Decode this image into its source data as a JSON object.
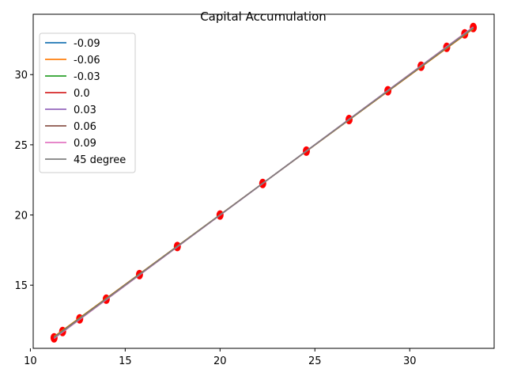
{
  "chart_data": {
    "type": "line",
    "title": "Capital Accumulation",
    "xlabel": "",
    "ylabel": "",
    "xlim": [
      10.15,
      34.45
    ],
    "ylim": [
      10.5,
      34.3
    ],
    "xticks": [
      10,
      15,
      20,
      25,
      30
    ],
    "yticks": [
      15,
      20,
      25,
      30
    ],
    "grid": false,
    "legend_position": "top-left",
    "x": [
      11.25,
      11.7,
      12.6,
      14.0,
      15.75,
      17.75,
      20.0,
      22.25,
      24.55,
      26.8,
      28.85,
      30.6,
      31.95,
      32.9,
      33.35
    ],
    "series": [
      {
        "name": "-0.09",
        "color": "#1f77b4",
        "slope": 1.0
      },
      {
        "name": "-0.06",
        "color": "#ff7f0e",
        "slope": 0.9925
      },
      {
        "name": "-0.03",
        "color": "#2ca02c",
        "slope": 0.996
      },
      {
        "name": "0.0",
        "color": "#d62728",
        "slope": 1.0
      },
      {
        "name": "0.03",
        "color": "#9467bd",
        "slope": 1.004
      },
      {
        "name": "0.06",
        "color": "#8c564b",
        "slope": 0.997
      },
      {
        "name": "0.09",
        "color": "#e377c2",
        "slope": 1.0035
      },
      {
        "name": "45 degree",
        "color": "#7f7f7f",
        "slope": 1.0
      }
    ],
    "marker_color": "#ff0000",
    "range": [
      11.25,
      33.35
    ]
  }
}
